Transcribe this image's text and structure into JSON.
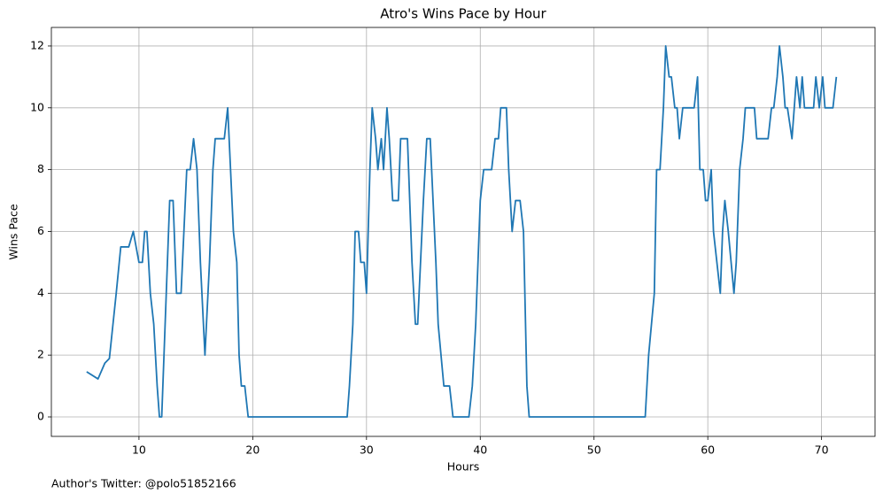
{
  "chart_data": {
    "type": "line",
    "title": "Atro's Wins Pace by Hour",
    "xlabel": "Hours",
    "ylabel": "Wins Pace",
    "annotation": "Author's Twitter: @polo51852166",
    "x": [
      5.4,
      6.4,
      7.0,
      7.4,
      8.0,
      8.4,
      9.1,
      9.5,
      10.0,
      10.3,
      10.5,
      10.7,
      11.0,
      11.3,
      11.6,
      11.8,
      12.0,
      12.3,
      12.7,
      13.0,
      13.3,
      13.7,
      14.2,
      14.5,
      14.8,
      15.1,
      15.4,
      15.8,
      16.2,
      16.5,
      16.7,
      17.5,
      17.8,
      18.3,
      18.6,
      18.8,
      19.0,
      19.3,
      19.6,
      28.3,
      28.5,
      28.8,
      29.0,
      29.3,
      29.5,
      29.8,
      30.0,
      30.3,
      30.5,
      30.8,
      31.0,
      31.3,
      31.5,
      31.8,
      32.0,
      32.3,
      32.8,
      33.0,
      33.6,
      34.0,
      34.3,
      34.5,
      35.0,
      35.3,
      35.6,
      36.1,
      36.3,
      36.8,
      37.3,
      37.6,
      39.0,
      39.3,
      39.6,
      39.8,
      40.0,
      40.3,
      41.0,
      41.3,
      41.6,
      41.8,
      42.3,
      42.5,
      42.8,
      43.1,
      43.5,
      43.8,
      44.1,
      44.3,
      54.5,
      54.8,
      55.3,
      55.5,
      55.8,
      56.1,
      56.3,
      56.6,
      56.8,
      57.1,
      57.3,
      57.5,
      57.8,
      58.8,
      59.1,
      59.3,
      59.6,
      59.8,
      60.0,
      60.3,
      60.5,
      61.1,
      61.3,
      61.5,
      61.8,
      62.3,
      62.5,
      62.8,
      63.1,
      63.3,
      64.1,
      64.3,
      65.3,
      65.6,
      65.8,
      66.1,
      66.3,
      66.6,
      66.8,
      67.0,
      67.4,
      67.6,
      67.8,
      68.1,
      68.3,
      68.5,
      69.3,
      69.5,
      69.8,
      70.1,
      70.3,
      71.0,
      71.3
    ],
    "series": [
      {
        "name": "Wins Pace",
        "color": "#1f77b4",
        "values": [
          1.46,
          1.23,
          1.74,
          1.89,
          4,
          5.5,
          5.5,
          6,
          5,
          5,
          6,
          6,
          4,
          3,
          1,
          0,
          0,
          3,
          7,
          7,
          4,
          4,
          8,
          8,
          9,
          8,
          5,
          2,
          5,
          8,
          9,
          9,
          10,
          6,
          5,
          2,
          1,
          1,
          0,
          0,
          1,
          3,
          6,
          6,
          5,
          5,
          4,
          8,
          10,
          9,
          8,
          9,
          8,
          10,
          9,
          7,
          7,
          9,
          9,
          5,
          3,
          3,
          7,
          9,
          9,
          5,
          3,
          1,
          1,
          0,
          0,
          1,
          3,
          5,
          7,
          8,
          8,
          9,
          9,
          10,
          10,
          8,
          6,
          7,
          7,
          6,
          1,
          0,
          0,
          2,
          4,
          8,
          8,
          10,
          12,
          11,
          11,
          10,
          10,
          9,
          10,
          10,
          11,
          8,
          8,
          7,
          7,
          8,
          6,
          4,
          6,
          7,
          6,
          4,
          5,
          8,
          9,
          10,
          10,
          9,
          9,
          10,
          10,
          11,
          12,
          11,
          10,
          10,
          9,
          10,
          11,
          10,
          11,
          10,
          10,
          11,
          10,
          11,
          10,
          10,
          11
        ]
      }
    ],
    "xlim": [
      2.3,
      74.7
    ],
    "ylim": [
      -0.63,
      12.6
    ],
    "xticks": [
      10,
      20,
      30,
      40,
      50,
      60,
      70
    ],
    "yticks": [
      0,
      2,
      4,
      6,
      8,
      10,
      12
    ],
    "grid": true
  }
}
